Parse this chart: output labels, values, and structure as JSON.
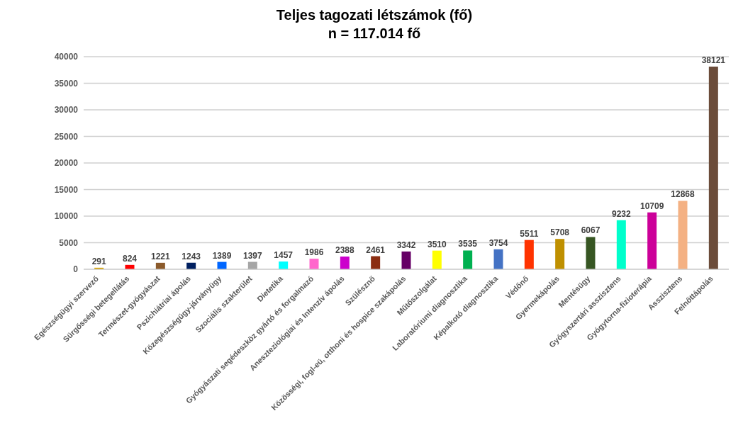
{
  "chart_data": {
    "type": "bar",
    "title": "Teljes tagozati létszámok (fő)",
    "subtitle": "n = 117.014 fő",
    "categories": [
      "Egészségügyi szervező",
      "Sürgősségi betegellátás",
      "Természet-gyógyászat",
      "Pszichiátriai ápolás",
      "Közegészségügy-járványügy",
      "Szociális szakterület",
      "Dietetika",
      "Gyógyászati segédeszköz gyártó és forgalmazó",
      "Aneszteziológiai és Intenzív ápolás",
      "Szülésznő",
      "Közösségi, fogl-eü, otthoni és hospice szakápolás",
      "Műtőszolgálat",
      "Laboratóriumi diagnosztika",
      "Képalkotó diagnosztika",
      "Védőnő",
      "Gyermekápolás",
      "Mentésügy",
      "Gyógyszertári asszisztens",
      "Gyógytorna-fizioterápia",
      "Asszisztens",
      "Felnőttápolás"
    ],
    "values": [
      291,
      824,
      1221,
      1243,
      1389,
      1397,
      1457,
      1986,
      2388,
      2461,
      3342,
      3510,
      3535,
      3754,
      5511,
      5708,
      6067,
      9232,
      10709,
      12868,
      38121
    ],
    "colors": [
      "#d4a000",
      "#ff0000",
      "#8b5a2b",
      "#002060",
      "#0066ff",
      "#a6a6a6",
      "#00ffff",
      "#ff66cc",
      "#cc00cc",
      "#8b2e12",
      "#660066",
      "#ffff00",
      "#00b050",
      "#4472c4",
      "#ff3300",
      "#bf9000",
      "#375623",
      "#00ffcc",
      "#cc0099",
      "#f4b183",
      "#6b4c3a"
    ],
    "ylim": [
      0,
      40000
    ],
    "yticks": [
      0,
      5000,
      10000,
      15000,
      20000,
      25000,
      30000,
      35000,
      40000
    ],
    "grid": "y",
    "data_labels": true
  }
}
